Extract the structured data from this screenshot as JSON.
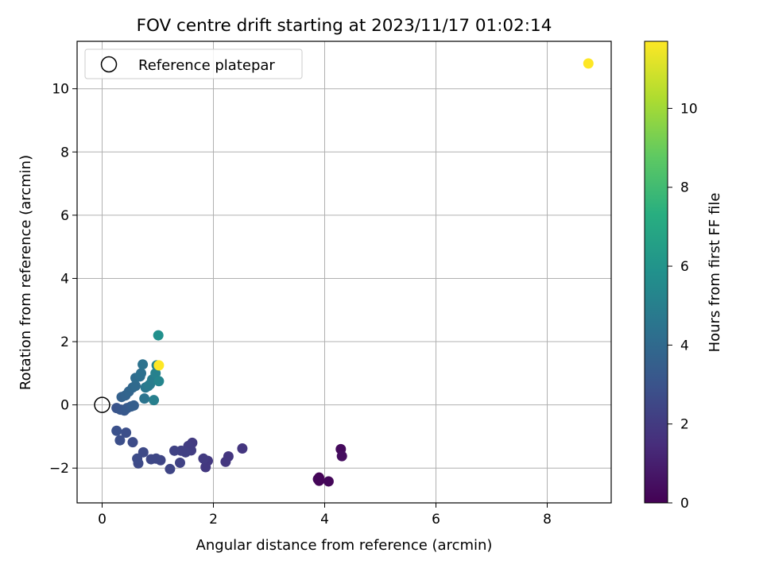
{
  "chart_data": {
    "type": "scatter",
    "title": "FOV centre drift starting at 2023/11/17 01:02:14",
    "xlabel": "Angular distance from reference (arcmin)",
    "ylabel": "Rotation from reference (arcmin)",
    "xlim": [
      -0.45,
      9.15
    ],
    "ylim": [
      -3.1,
      11.5
    ],
    "xticks": [
      0,
      2,
      4,
      6,
      8
    ],
    "yticks": [
      -2,
      0,
      2,
      4,
      6,
      8,
      10
    ],
    "xtick_labels": [
      "0",
      "2",
      "4",
      "6",
      "8"
    ],
    "ytick_labels": [
      "−2",
      "0",
      "2",
      "4",
      "6",
      "8",
      "10"
    ],
    "grid": true,
    "legend": {
      "placement": "top-left",
      "label": "Reference platepar"
    },
    "reference_point": {
      "x": 0,
      "y": 0
    },
    "colorbar": {
      "label": "Hours from first FF file",
      "range": [
        0,
        11.7
      ],
      "ticks": [
        0,
        2,
        4,
        6,
        8,
        10
      ],
      "tick_labels": [
        "0",
        "2",
        "4",
        "6",
        "8",
        "10"
      ],
      "colormap": "viridis"
    },
    "points": [
      {
        "x": 3.9,
        "y": -2.3,
        "h": 0.05
      },
      {
        "x": 3.9,
        "y": -2.4,
        "h": 0.1
      },
      {
        "x": 3.88,
        "y": -2.35,
        "h": 0.15
      },
      {
        "x": 4.07,
        "y": -2.42,
        "h": 0.2
      },
      {
        "x": 4.29,
        "y": -1.4,
        "h": 0.3
      },
      {
        "x": 4.31,
        "y": -1.62,
        "h": 0.4
      },
      {
        "x": 2.52,
        "y": -1.38,
        "h": 1.8
      },
      {
        "x": 2.27,
        "y": -1.63,
        "h": 1.8
      },
      {
        "x": 2.22,
        "y": -1.8,
        "h": 1.85
      },
      {
        "x": 1.9,
        "y": -1.77,
        "h": 1.9
      },
      {
        "x": 1.86,
        "y": -1.97,
        "h": 1.9
      },
      {
        "x": 1.82,
        "y": -1.7,
        "h": 2.0
      },
      {
        "x": 1.62,
        "y": -1.2,
        "h": 2.0
      },
      {
        "x": 1.6,
        "y": -1.44,
        "h": 2.1
      },
      {
        "x": 1.55,
        "y": -1.3,
        "h": 2.1
      },
      {
        "x": 1.5,
        "y": -1.5,
        "h": 2.2
      },
      {
        "x": 1.42,
        "y": -1.45,
        "h": 2.2
      },
      {
        "x": 1.4,
        "y": -1.83,
        "h": 2.3
      },
      {
        "x": 1.3,
        "y": -1.45,
        "h": 2.3
      },
      {
        "x": 1.22,
        "y": -2.03,
        "h": 2.4
      },
      {
        "x": 1.05,
        "y": -1.75,
        "h": 2.4
      },
      {
        "x": 0.97,
        "y": -1.7,
        "h": 2.5
      },
      {
        "x": 0.88,
        "y": -1.72,
        "h": 2.5
      },
      {
        "x": 0.74,
        "y": -1.5,
        "h": 2.6
      },
      {
        "x": 0.65,
        "y": -1.85,
        "h": 2.6
      },
      {
        "x": 0.63,
        "y": -1.7,
        "h": 2.7
      },
      {
        "x": 0.55,
        "y": -1.18,
        "h": 2.7
      },
      {
        "x": 0.43,
        "y": -0.88,
        "h": 2.8
      },
      {
        "x": 0.32,
        "y": -1.12,
        "h": 2.8
      },
      {
        "x": 0.26,
        "y": -0.82,
        "h": 2.9
      },
      {
        "x": 0.26,
        "y": -0.1,
        "h": 3.0
      },
      {
        "x": 0.33,
        "y": -0.15,
        "h": 3.1
      },
      {
        "x": 0.4,
        "y": -0.18,
        "h": 3.2
      },
      {
        "x": 0.45,
        "y": -0.1,
        "h": 3.3
      },
      {
        "x": 0.52,
        "y": -0.05,
        "h": 3.4
      },
      {
        "x": 0.57,
        "y": -0.02,
        "h": 3.5
      },
      {
        "x": 0.35,
        "y": 0.25,
        "h": 3.6
      },
      {
        "x": 0.42,
        "y": 0.3,
        "h": 3.7
      },
      {
        "x": 0.48,
        "y": 0.42,
        "h": 3.8
      },
      {
        "x": 0.55,
        "y": 0.55,
        "h": 3.9
      },
      {
        "x": 0.6,
        "y": 0.6,
        "h": 4.0
      },
      {
        "x": 0.6,
        "y": 0.85,
        "h": 4.1
      },
      {
        "x": 0.68,
        "y": 0.9,
        "h": 4.2
      },
      {
        "x": 0.7,
        "y": 1.0,
        "h": 4.3
      },
      {
        "x": 0.73,
        "y": 1.28,
        "h": 4.4
      },
      {
        "x": 0.76,
        "y": 0.2,
        "h": 4.5
      },
      {
        "x": 0.78,
        "y": 0.55,
        "h": 4.6
      },
      {
        "x": 0.83,
        "y": 0.6,
        "h": 4.7
      },
      {
        "x": 0.86,
        "y": 0.65,
        "h": 4.8
      },
      {
        "x": 0.9,
        "y": 0.8,
        "h": 4.9
      },
      {
        "x": 0.93,
        "y": 0.15,
        "h": 5.0
      },
      {
        "x": 0.96,
        "y": 1.0,
        "h": 5.1
      },
      {
        "x": 0.98,
        "y": 1.25,
        "h": 5.2
      },
      {
        "x": 1.02,
        "y": 0.75,
        "h": 5.3
      },
      {
        "x": 1.01,
        "y": 2.2,
        "h": 5.8
      },
      {
        "x": 1.02,
        "y": 1.25,
        "h": 11.7
      },
      {
        "x": 8.74,
        "y": 10.8,
        "h": 11.7
      }
    ]
  }
}
